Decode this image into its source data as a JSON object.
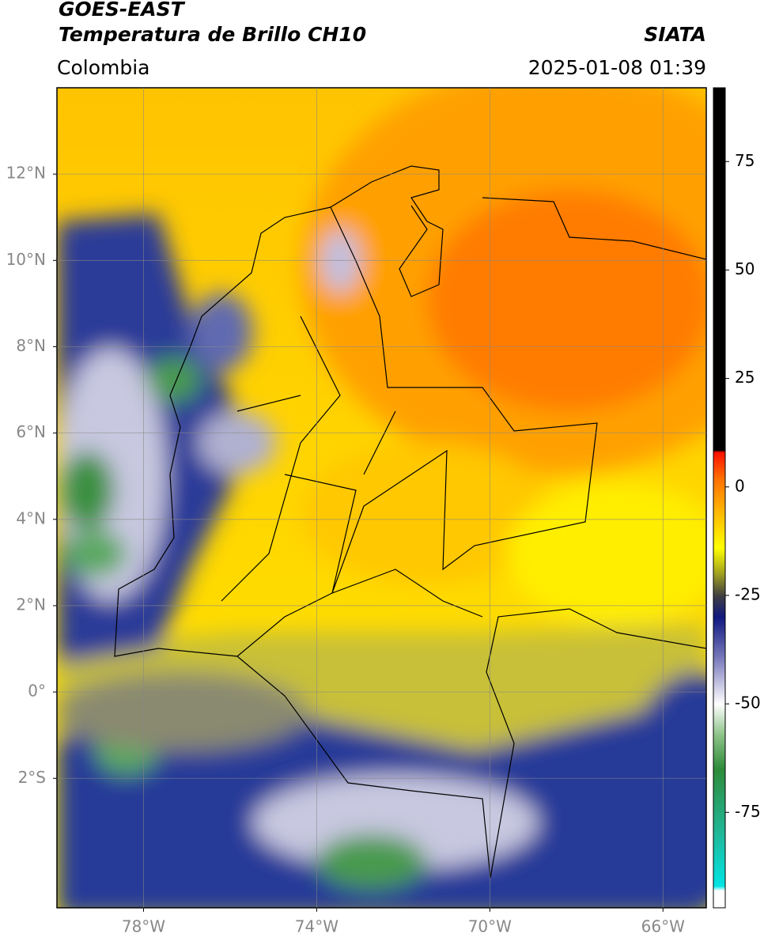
{
  "header": {
    "title_line1": "GOES-EAST",
    "title_line2": "Temperatura de Brillo CH10",
    "source": "SIATA",
    "region": "Colombia",
    "datetime": "2025-01-08 01:39"
  },
  "map": {
    "xlim": [
      -80,
      -65
    ],
    "ylim": [
      -5,
      14
    ],
    "xticks": [
      {
        "value": -78,
        "label": "78°W"
      },
      {
        "value": -74,
        "label": "74°W"
      },
      {
        "value": -70,
        "label": "70°W"
      },
      {
        "value": -66,
        "label": "66°W"
      }
    ],
    "yticks": [
      {
        "value": -2,
        "label": "2°S"
      },
      {
        "value": 0,
        "label": "0°"
      },
      {
        "value": 2,
        "label": "2°N"
      },
      {
        "value": 4,
        "label": "4°N"
      },
      {
        "value": 6,
        "label": "6°N"
      },
      {
        "value": 8,
        "label": "8°N"
      },
      {
        "value": 10,
        "label": "10°N"
      },
      {
        "value": 12,
        "label": "12°N"
      }
    ],
    "grid": true
  },
  "colorbar": {
    "lim": [
      -97,
      92
    ],
    "ticks": [
      75,
      50,
      25,
      0,
      -25,
      -50,
      -75
    ],
    "stops": [
      {
        "value": -97,
        "color": "#ffffff"
      },
      {
        "value": -93,
        "color": "#ffffff"
      },
      {
        "value": -92,
        "color": "#00e5e5"
      },
      {
        "value": -80,
        "color": "#20b89a"
      },
      {
        "value": -65,
        "color": "#2e8b3a"
      },
      {
        "value": -57,
        "color": "#8fc48a"
      },
      {
        "value": -50,
        "color": "#ffffff"
      },
      {
        "value": -40,
        "color": "#8080c0"
      },
      {
        "value": -30,
        "color": "#101880"
      },
      {
        "value": -25,
        "color": "#404040"
      },
      {
        "value": -20,
        "color": "#a0a020"
      },
      {
        "value": -14,
        "color": "#ffff00"
      },
      {
        "value": -5,
        "color": "#ffb000"
      },
      {
        "value": 2,
        "color": "#ff7000"
      },
      {
        "value": 8,
        "color": "#ff1000"
      },
      {
        "value": 8.5,
        "color": "#000000"
      },
      {
        "value": 92,
        "color": "#000000"
      }
    ]
  }
}
